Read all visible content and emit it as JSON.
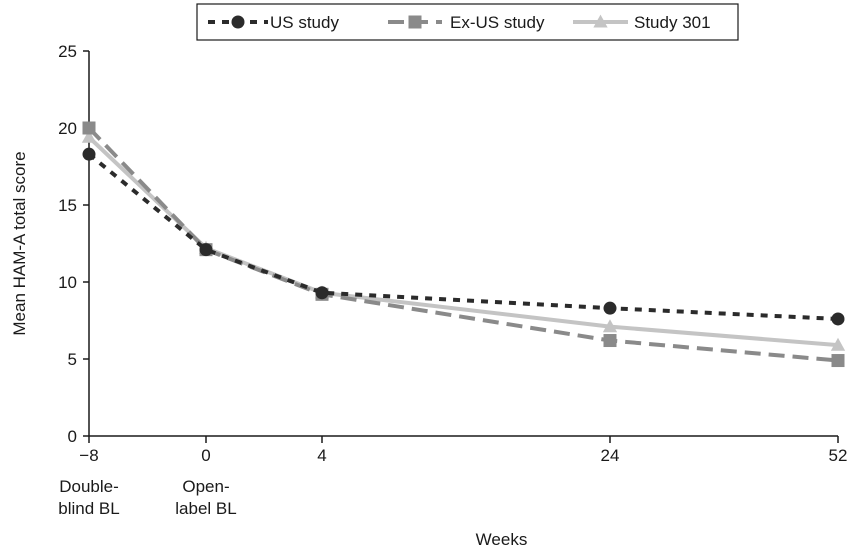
{
  "chart_data": {
    "type": "line",
    "title": "",
    "xlabel": "Weeks",
    "ylabel": "Mean HAM-A total score",
    "ylim": [
      0,
      25
    ],
    "yticks": [
      0,
      5,
      10,
      15,
      20,
      25
    ],
    "xticks": [
      {
        "value": -8,
        "label": "−8",
        "sublabel": [
          "Double-",
          "blind BL"
        ]
      },
      {
        "value": 0,
        "label": "0",
        "sublabel": [
          "Open-",
          "label BL"
        ]
      },
      {
        "value": 4,
        "label": "4",
        "sublabel": []
      },
      {
        "value": 24,
        "label": "24",
        "sublabel": []
      },
      {
        "value": 52,
        "label": "52",
        "sublabel": []
      }
    ],
    "x_scale": "categorical-spaced",
    "grid": false,
    "legend_position": "top",
    "series": [
      {
        "name": "US study",
        "color": "#2b2b2b",
        "dash": "dotted",
        "marker": "circle",
        "x": [
          -8,
          0,
          4,
          24,
          52
        ],
        "values": [
          18.3,
          12.1,
          9.3,
          8.3,
          7.6
        ]
      },
      {
        "name": "Ex-US study",
        "color": "#8a8a8a",
        "dash": "dashed",
        "marker": "square",
        "x": [
          -8,
          0,
          4,
          24,
          52
        ],
        "values": [
          20.0,
          12.1,
          9.2,
          6.2,
          4.9
        ]
      },
      {
        "name": "Study 301",
        "color": "#c4c4c4",
        "dash": "solid",
        "marker": "triangle",
        "x": [
          -8,
          0,
          4,
          24,
          52
        ],
        "values": [
          19.4,
          12.2,
          9.3,
          7.1,
          5.9
        ]
      }
    ]
  }
}
